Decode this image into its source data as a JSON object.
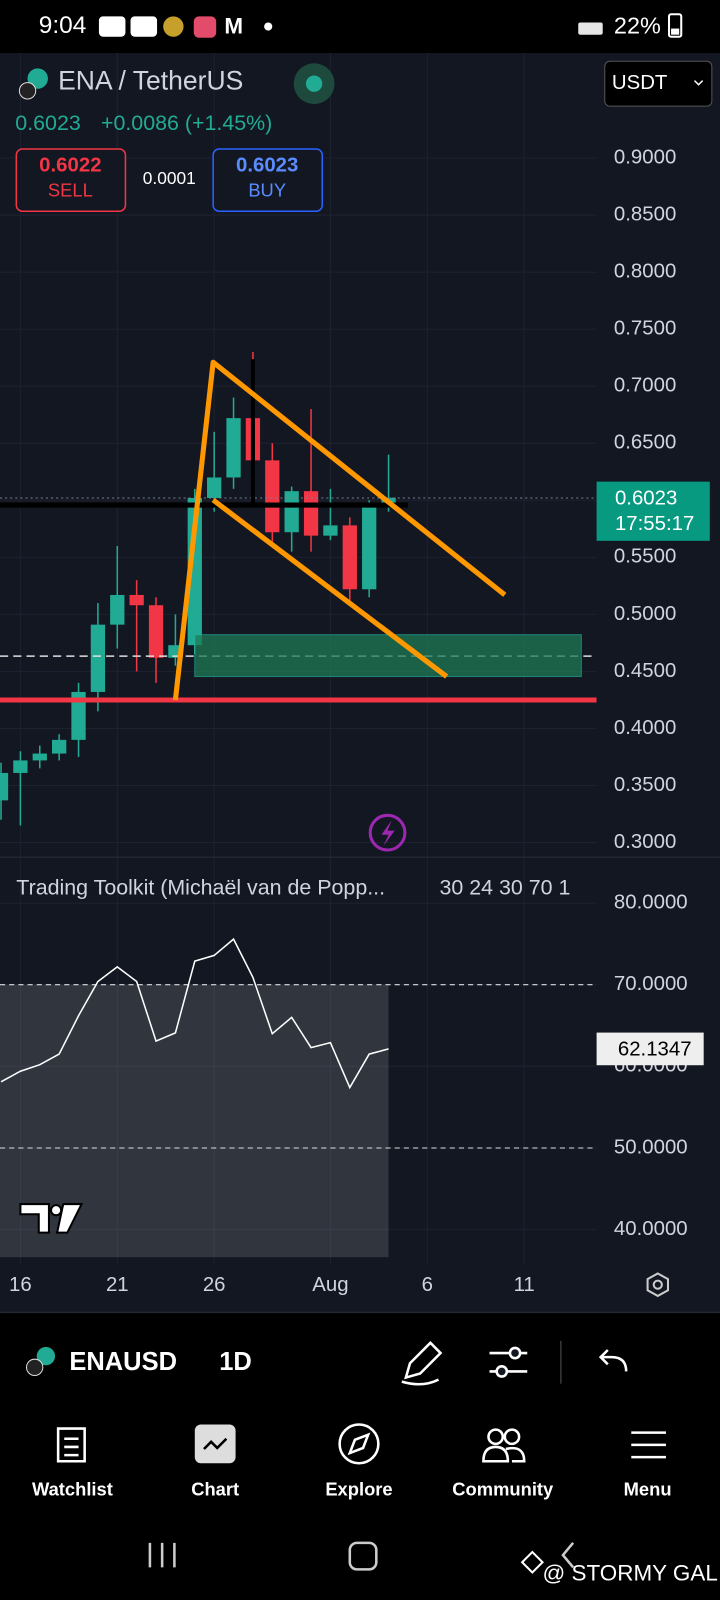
{
  "status_bar": {
    "time": "9:04",
    "battery": "22%"
  },
  "header": {
    "symbol": "ENA / TetherUS",
    "last": "0.6023",
    "change": "+0.0086 (+1.45%)",
    "sell_price": "0.6022",
    "sell": "SELL",
    "spread": "0.0001",
    "buy_price": "0.6023",
    "buy": "BUY",
    "currency": "USDT"
  },
  "price_tag": {
    "price": "0.6023",
    "countdown": "17:55:17"
  },
  "chart_data": [
    {
      "type": "candlestick",
      "categories": [
        null,
        "16",
        null,
        null,
        null,
        null,
        "21",
        null,
        null,
        null,
        null,
        "26",
        null,
        null,
        null,
        null,
        null,
        "Aug",
        null,
        null,
        null,
        null,
        "6",
        null,
        null,
        null,
        null,
        "11"
      ],
      "open": [
        0.337,
        0.361,
        0.372,
        0.378,
        0.39,
        0.432,
        0.491,
        0.517,
        0.508,
        0.462,
        0.473,
        0.602,
        0.62,
        0.672,
        0.635,
        0.572,
        0.608,
        0.569,
        0.578,
        0.522,
        0.594,
        null,
        null,
        null,
        null,
        null,
        null,
        null
      ],
      "high": [
        0.37,
        0.38,
        0.385,
        0.395,
        0.44,
        0.51,
        0.56,
        0.53,
        0.515,
        0.5,
        0.61,
        0.66,
        0.69,
        0.73,
        0.65,
        0.612,
        0.68,
        0.61,
        0.585,
        0.6,
        0.64,
        null,
        null,
        null,
        null,
        null,
        null,
        null
      ],
      "low": [
        0.32,
        0.315,
        0.365,
        0.372,
        0.375,
        0.415,
        0.47,
        0.45,
        0.44,
        0.455,
        0.465,
        0.59,
        0.61,
        0.6,
        0.56,
        0.555,
        0.555,
        0.565,
        0.51,
        0.515,
        0.59,
        null,
        null,
        null,
        null,
        null,
        null,
        null
      ],
      "close": [
        0.361,
        0.372,
        0.378,
        0.39,
        0.432,
        0.491,
        0.517,
        0.508,
        0.462,
        0.473,
        0.602,
        0.62,
        0.672,
        0.635,
        0.572,
        0.608,
        0.569,
        0.578,
        0.522,
        0.594,
        0.6023,
        null,
        null,
        null,
        null,
        null,
        null,
        null
      ],
      "up_color": "#22ab94",
      "down_color": "#f23645",
      "ylim": [
        0.289,
        0.992
      ],
      "yticks": [
        {
          "value": 0.9,
          "label": "0.9000"
        },
        {
          "value": 0.85,
          "label": "0.8500"
        },
        {
          "value": 0.8,
          "label": "0.8000"
        },
        {
          "value": 0.75,
          "label": "0.7500"
        },
        {
          "value": 0.7,
          "label": "0.7000"
        },
        {
          "value": 0.65,
          "label": "0.6500"
        },
        {
          "value": 0.6,
          "label": "0.6000"
        },
        {
          "value": 0.55,
          "label": "0.5500"
        },
        {
          "value": 0.5,
          "label": "0.5000"
        },
        {
          "value": 0.45,
          "label": "0.4500"
        },
        {
          "value": 0.4,
          "label": "0.4000"
        },
        {
          "value": 0.35,
          "label": "0.3500"
        },
        {
          "value": 0.3,
          "label": "0.3000"
        }
      ],
      "grid": true
    },
    {
      "type": "line",
      "title": "Trading Toolkit (Michaël van de Popp...",
      "params": "30 24 30 70 1",
      "color": "#ffffff",
      "values": [
        58.1,
        59.4,
        60.2,
        61.5,
        66.2,
        70.4,
        72.2,
        70.4,
        63.1,
        64.1,
        72.9,
        73.6,
        75.6,
        70.9,
        64.0,
        66.0,
        62.3,
        62.9,
        57.4,
        61.5,
        62.1347
      ],
      "ylim": [
        35.6,
        85.4
      ],
      "yticks": [
        {
          "value": 80,
          "label": "80.0000"
        },
        {
          "value": 70,
          "label": "70.0000"
        },
        {
          "value": 60,
          "label": "60.0000"
        },
        {
          "value": 50,
          "label": "50.0000"
        },
        {
          "value": 40,
          "label": "40.0000"
        }
      ],
      "grid": true
    }
  ],
  "toolbar": {
    "symbol": "ENAUSD",
    "interval": "1D"
  },
  "nav": [
    "Watchlist",
    "Chart",
    "Explore",
    "Community",
    "Menu"
  ],
  "watermark": "@ STORMY GAL"
}
